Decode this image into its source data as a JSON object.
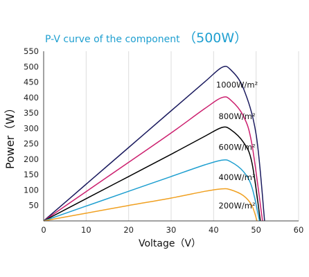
{
  "chart_data": {
    "type": "line",
    "title": "P-V curve of the component",
    "title_suffix": "500W",
    "title_paren_open": "（",
    "title_paren_close": "）",
    "xlabel": "Voltage",
    "xlabel_unit": "V",
    "ylabel": "Power",
    "ylabel_unit": "W",
    "xlim": [
      0,
      60
    ],
    "ylim": [
      0,
      550
    ],
    "x_ticks": [
      0,
      10,
      20,
      30,
      40,
      50,
      60
    ],
    "y_ticks": [
      50,
      100,
      150,
      200,
      250,
      300,
      350,
      400,
      450,
      500,
      550
    ],
    "grid": "vertical",
    "series": [
      {
        "name": "1000W/m²",
        "color": "#1a1a5e",
        "points": [
          [
            0,
            0
          ],
          [
            10,
            119
          ],
          [
            20,
            238
          ],
          [
            30,
            357
          ],
          [
            38,
            452
          ],
          [
            42,
            498
          ],
          [
            44,
            490
          ],
          [
            47,
            430
          ],
          [
            50,
            280
          ],
          [
            52,
            0
          ]
        ]
      },
      {
        "name": "800W/m²",
        "color": "#cc1f6e",
        "points": [
          [
            0,
            0
          ],
          [
            10,
            95
          ],
          [
            20,
            190
          ],
          [
            30,
            285
          ],
          [
            38,
            365
          ],
          [
            42,
            400
          ],
          [
            44,
            392
          ],
          [
            47,
            340
          ],
          [
            49,
            250
          ],
          [
            51.5,
            0
          ]
        ]
      },
      {
        "name": "600W/m²",
        "color": "#000000",
        "points": [
          [
            0,
            0
          ],
          [
            10,
            72
          ],
          [
            20,
            144
          ],
          [
            30,
            216
          ],
          [
            38,
            275
          ],
          [
            42,
            303
          ],
          [
            44,
            296
          ],
          [
            47,
            255
          ],
          [
            49,
            190
          ],
          [
            51,
            0
          ]
        ]
      },
      {
        "name": "400W/m²",
        "color": "#1e9fd0",
        "points": [
          [
            0,
            0
          ],
          [
            10,
            48
          ],
          [
            20,
            96
          ],
          [
            30,
            144
          ],
          [
            38,
            182
          ],
          [
            42,
            197
          ],
          [
            44,
            192
          ],
          [
            47,
            160
          ],
          [
            49,
            110
          ],
          [
            50.8,
            0
          ]
        ]
      },
      {
        "name": "200W/m²",
        "color": "#f0a020",
        "points": [
          [
            0,
            0
          ],
          [
            10,
            25
          ],
          [
            20,
            50
          ],
          [
            30,
            74
          ],
          [
            38,
            96
          ],
          [
            42,
            104
          ],
          [
            44,
            101
          ],
          [
            47,
            82
          ],
          [
            49,
            50
          ],
          [
            50.2,
            0
          ]
        ]
      }
    ],
    "label_values": [
      [
        1000,
        432
      ],
      [
        800,
        330
      ],
      [
        600,
        230
      ],
      [
        400,
        132
      ],
      [
        200,
        40
      ]
    ]
  }
}
